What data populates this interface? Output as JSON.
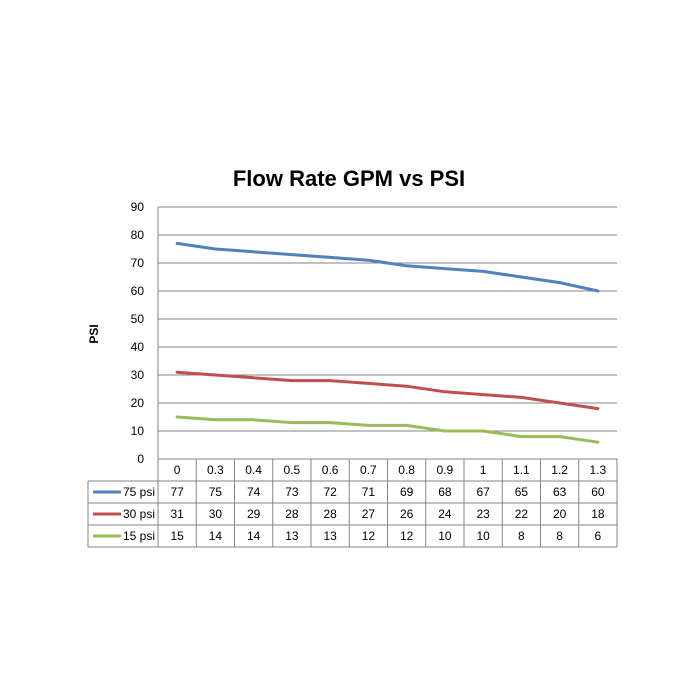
{
  "chart_data": {
    "type": "line",
    "title": "Flow Rate GPM vs PSI",
    "xlabel": "",
    "ylabel": "PSI",
    "ylim": [
      0,
      90
    ],
    "y_ticks": [
      0,
      10,
      20,
      30,
      40,
      50,
      60,
      70,
      80,
      90
    ],
    "grid": true,
    "legend": "data-table",
    "categories": [
      "0",
      "0.3",
      "0.4",
      "0.5",
      "0.6",
      "0.7",
      "0.8",
      "0.9",
      "1",
      "1.1",
      "1.2",
      "1.3"
    ],
    "series": [
      {
        "name": "75 psi",
        "color": "#4F81BD",
        "values": [
          77,
          75,
          74,
          73,
          72,
          71,
          69,
          68,
          67,
          65,
          63,
          60
        ]
      },
      {
        "name": "30 psi",
        "color": "#C0504D",
        "values": [
          31,
          30,
          29,
          28,
          28,
          27,
          26,
          24,
          23,
          22,
          20,
          18
        ]
      },
      {
        "name": "15 psi",
        "color": "#9BBB59",
        "values": [
          15,
          14,
          14,
          13,
          13,
          12,
          12,
          10,
          10,
          8,
          8,
          6
        ]
      }
    ]
  }
}
